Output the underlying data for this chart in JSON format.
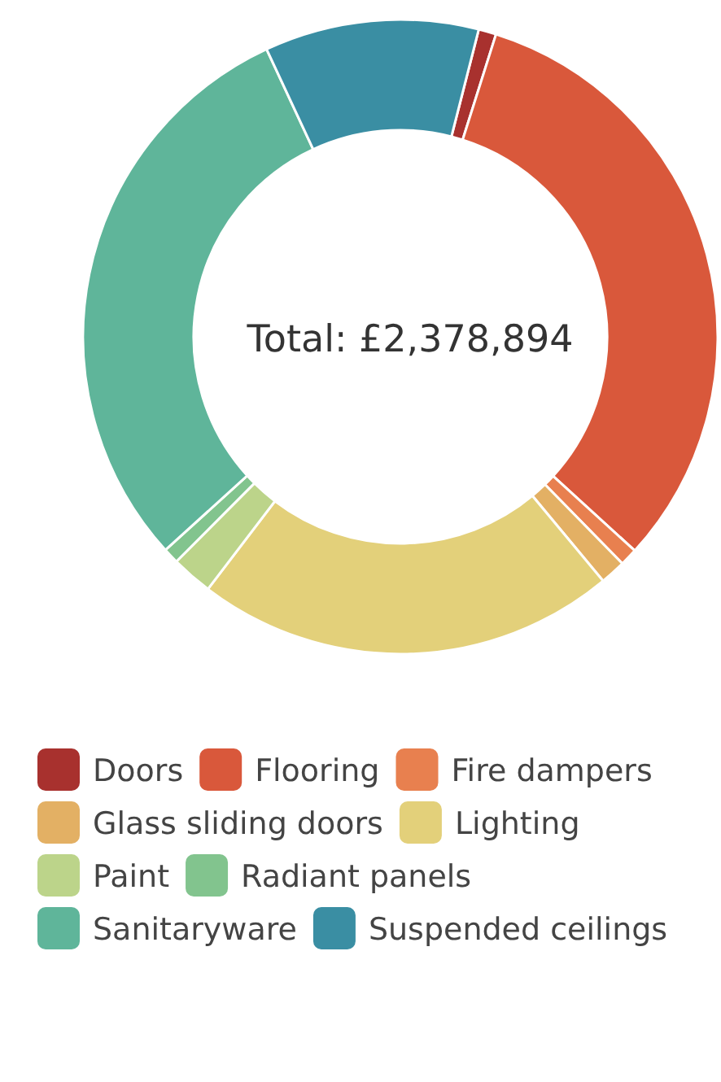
{
  "chart_data": {
    "type": "donut",
    "categories": [
      "Doors",
      "Flooring",
      "Fire dampers",
      "Glass sliding doors",
      "Lighting",
      "Paint",
      "Radiant panels",
      "Sanitaryware",
      "Suspended ceilings"
    ],
    "values": [
      0.9,
      31.9,
      0.9,
      1.3,
      21.4,
      2.1,
      0.8,
      29.8,
      10.9
    ],
    "colors": [
      "#a8312e",
      "#d9583b",
      "#e8804f",
      "#e3b064",
      "#e3d07a",
      "#bcd48a",
      "#82c48e",
      "#5fb59a",
      "#3a8ea3"
    ],
    "annotations": [
      "Total: £2,378,894"
    ],
    "legend": "bottom"
  }
}
